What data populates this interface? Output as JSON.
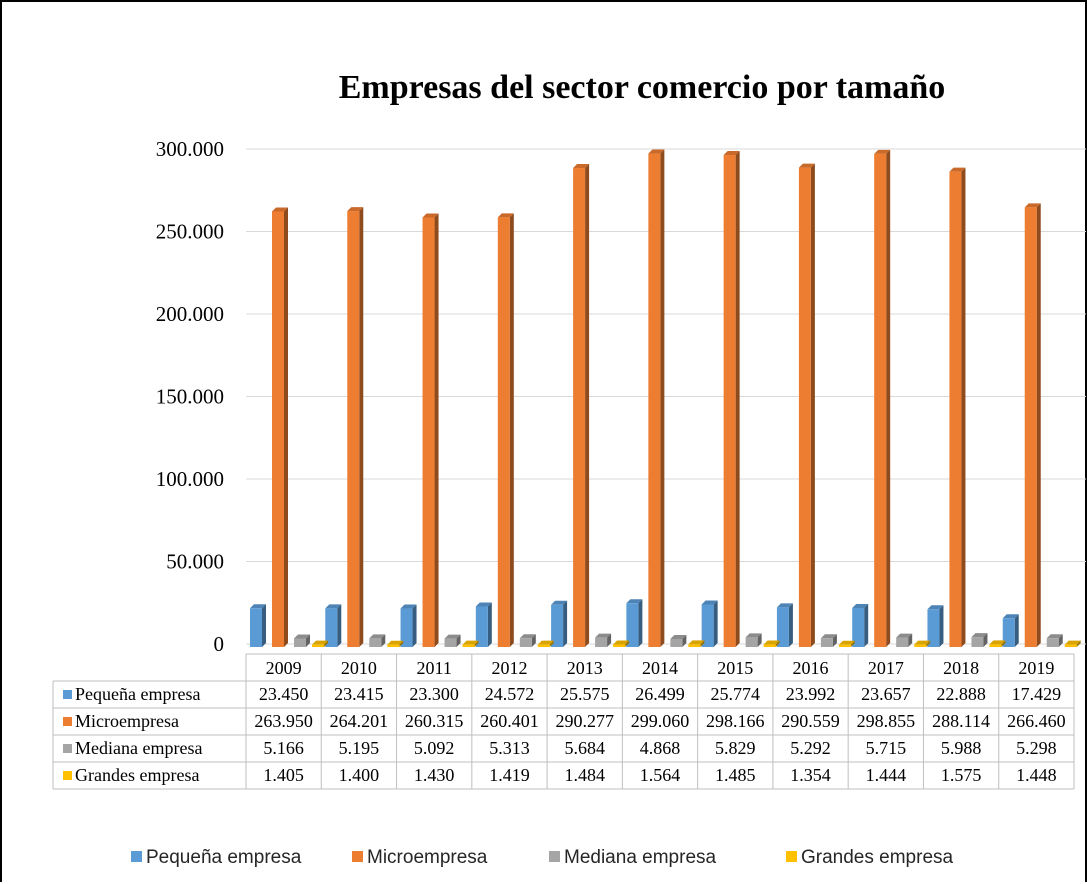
{
  "chart_data": {
    "type": "bar",
    "title": "Empresas del sector comercio por tamaño",
    "categories": [
      "2009",
      "2010",
      "2011",
      "2012",
      "2013",
      "2014",
      "2015",
      "2016",
      "2017",
      "2018",
      "2019"
    ],
    "series": [
      {
        "name": "Pequeña empresa",
        "color": "#5b9bd5",
        "values": [
          23450,
          23415,
          23300,
          24572,
          25575,
          26499,
          25774,
          23992,
          23657,
          22888,
          17429
        ],
        "labels": [
          "23.450",
          "23.415",
          "23.300",
          "24.572",
          "25.575",
          "26.499",
          "25.774",
          "23.992",
          "23.657",
          "22.888",
          "17.429"
        ]
      },
      {
        "name": "Microempresa",
        "color": "#ed7d31",
        "values": [
          263950,
          264201,
          260315,
          260401,
          290277,
          299060,
          298166,
          290559,
          298855,
          288114,
          266460
        ],
        "labels": [
          "263.950",
          "264.201",
          "260.315",
          "260.401",
          "290.277",
          "299.060",
          "298.166",
          "290.559",
          "298.855",
          "288.114",
          "266.460"
        ]
      },
      {
        "name": "Mediana empresa",
        "color": "#a5a5a5",
        "values": [
          5166,
          5195,
          5092,
          5313,
          5684,
          4868,
          5829,
          5292,
          5715,
          5988,
          5298
        ],
        "labels": [
          "5.166",
          "5.195",
          "5.092",
          "5.313",
          "5.684",
          "4.868",
          "5.829",
          "5.292",
          "5.715",
          "5.988",
          "5.298"
        ]
      },
      {
        "name": "Grandes empresa",
        "color": "#ffc000",
        "values": [
          1405,
          1400,
          1430,
          1419,
          1484,
          1564,
          1485,
          1354,
          1444,
          1575,
          1448
        ],
        "labels": [
          "1.405",
          "1.400",
          "1.430",
          "1.419",
          "1.484",
          "1.564",
          "1.485",
          "1.354",
          "1.444",
          "1.575",
          "1.448"
        ]
      }
    ],
    "ylim": [
      0,
      300000
    ],
    "yticks": [
      0,
      50000,
      100000,
      150000,
      200000,
      250000,
      300000
    ],
    "ytick_labels": [
      "0",
      "50.000",
      "100.000",
      "150.000",
      "200.000",
      "250.000",
      "300.000"
    ],
    "xlabel": "",
    "ylabel": "",
    "grid": true,
    "data_table": true,
    "legend_position": "bottom"
  }
}
